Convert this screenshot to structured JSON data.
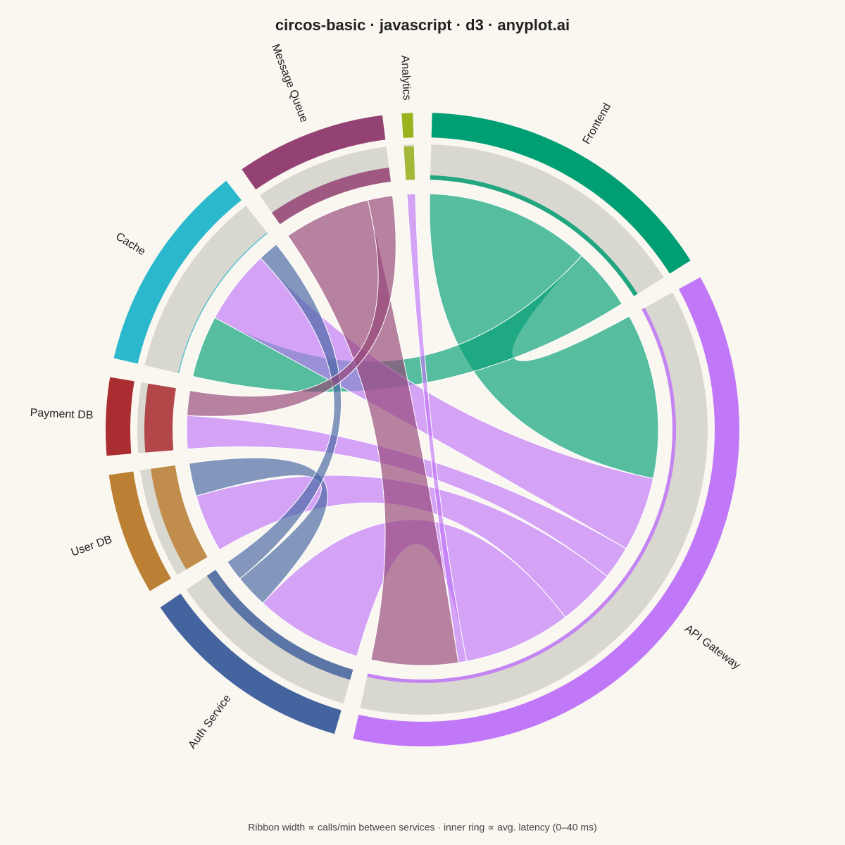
{
  "chart_data": {
    "type": "chord",
    "title": "circos-basic · javascript · d3 · anyplot.ai",
    "caption": "Ribbon width ∝ calls/min between services · inner ring ∝ avg. latency (0–40 ms)",
    "latency_range": [
      0,
      40
    ],
    "nodes": [
      {
        "name": "Frontend",
        "color": "#009e73",
        "latency": 5
      },
      {
        "name": "API Gateway",
        "color": "#c077f8",
        "latency": 4
      },
      {
        "name": "Auth Service",
        "color": "#4464a0",
        "latency": 12
      },
      {
        "name": "User DB",
        "color": "#bc8035",
        "latency": 28
      },
      {
        "name": "Payment DB",
        "color": "#aa2d31",
        "latency": 32
      },
      {
        "name": "Cache",
        "color": "#2bb8cc",
        "latency": 1
      },
      {
        "name": "Message Queue",
        "color": "#944274",
        "latency": 16
      },
      {
        "name": "Analytics",
        "color": "#99b21d",
        "latency": 38
      }
    ],
    "links": [
      {
        "source": "Frontend",
        "target": "API Gateway",
        "value": 400
      },
      {
        "source": "Frontend",
        "target": "Cache",
        "value": 150
      },
      {
        "source": "API Gateway",
        "target": "Cache",
        "value": 180
      },
      {
        "source": "API Gateway",
        "target": "Payment DB",
        "value": 80
      },
      {
        "source": "API Gateway",
        "target": "User DB",
        "value": 140
      },
      {
        "source": "API Gateway",
        "target": "Auth Service",
        "value": 260
      },
      {
        "source": "API Gateway",
        "target": "Analytics",
        "value": 20
      },
      {
        "source": "Auth Service",
        "target": "User DB",
        "value": 80
      },
      {
        "source": "Auth Service",
        "target": "Cache",
        "value": 50
      },
      {
        "source": "Message Queue",
        "target": "API Gateway",
        "value": 210
      },
      {
        "source": "Message Queue",
        "target": "Payment DB",
        "value": 60
      }
    ]
  }
}
